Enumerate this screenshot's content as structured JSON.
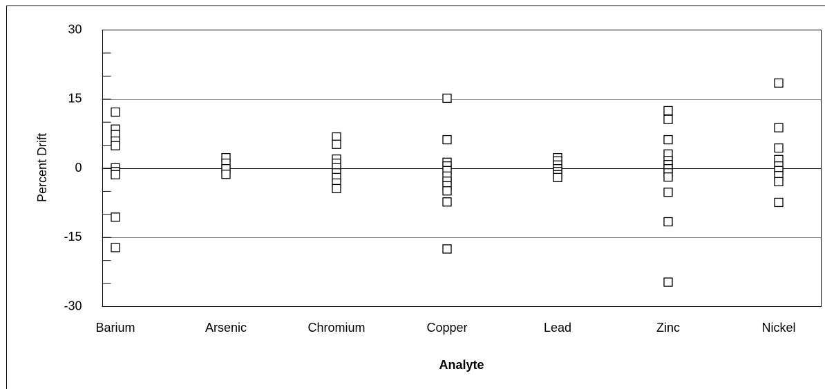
{
  "chart_data": {
    "type": "strip",
    "x_label": "Analyte",
    "y_label": "Percent Drift",
    "categories": [
      "Barium",
      "Arsenic",
      "Chromium",
      "Copper",
      "Lead",
      "Zinc",
      "Nickel"
    ],
    "values": [
      [
        12.2,
        8.5,
        7.3,
        5.9,
        4.9,
        0.1,
        -0.7,
        -1.4,
        -10.6,
        -17.2
      ],
      [
        2.3,
        1.1,
        -0.1,
        -1.3
      ],
      [
        6.8,
        5.2,
        2.0,
        1.1,
        0.1,
        -1.0,
        -2.0,
        -3.2,
        -4.4
      ],
      [
        15.2,
        6.2,
        1.3,
        0.5,
        -0.5,
        -1.7,
        -2.8,
        -3.8,
        -4.9,
        -7.3,
        -17.5
      ],
      [
        2.3,
        1.6,
        0.7,
        -0.1,
        -0.7,
        -1.4,
        -2.0
      ],
      [
        12.5,
        10.6,
        6.2,
        3.1,
        1.7,
        0.8,
        -0.1,
        -1.0,
        -1.9,
        -5.2,
        -11.6,
        -24.7
      ],
      [
        18.5,
        8.8,
        4.4,
        1.9,
        0.5,
        -0.5,
        -1.6,
        -2.9,
        -7.4
      ]
    ],
    "marker": "square",
    "color": "#000000",
    "ylim": [
      -30,
      30
    ],
    "yticks": [
      -30,
      -15,
      0,
      15,
      30
    ],
    "yticks_minor": [
      -25,
      -20,
      -10,
      -5,
      5,
      10,
      20,
      25
    ],
    "reference_lines": [
      15,
      0,
      -15
    ]
  }
}
